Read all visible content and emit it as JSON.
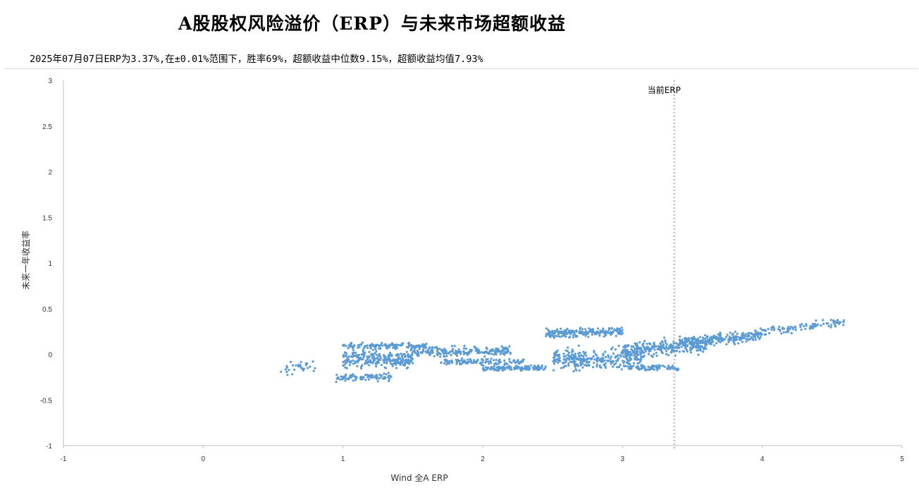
{
  "chart_data": {
    "type": "scatter",
    "title": "A股股权风险溢价（ERP）与未来市场超额收益",
    "subtitle": "2025年07月07日ERP为3.37%,在±0.01%范围下，胜率69%，超额收益中位数9.15%，超额收益均值7.93%",
    "xlabel": "Wind 全A ERP",
    "ylabel": "未来一年收益率",
    "xlim": [
      -1,
      5
    ],
    "ylim": [
      -1,
      3
    ],
    "x_ticks": [
      "-1",
      "0",
      "1",
      "2",
      "3",
      "4",
      "5"
    ],
    "y_ticks": [
      "-1",
      "-0.5",
      "0",
      "0.5",
      "1",
      "1.5",
      "2",
      "2.5",
      "3"
    ],
    "grid": false,
    "legend": "none",
    "point_color": "#5b9bd5",
    "reference_line": {
      "label": "当前ERP",
      "x": 3.37,
      "color": "#bfbfbf"
    },
    "clusters": [
      {
        "x_range": [
          0.52,
          0.85
        ],
        "y_center": -0.15,
        "y_spread": 0.07,
        "slope": 0.25,
        "count": 30
      },
      {
        "x_range": [
          1.0,
          1.5
        ],
        "y_center": -0.05,
        "y_spread": 0.09,
        "slope": 0.0,
        "count": 260
      },
      {
        "x_range": [
          0.95,
          1.35
        ],
        "y_center": -0.25,
        "y_spread": 0.04,
        "slope": 0.05,
        "count": 90
      },
      {
        "x_range": [
          1.0,
          1.6
        ],
        "y_center": 0.09,
        "y_spread": 0.03,
        "slope": 0.0,
        "count": 140
      },
      {
        "x_range": [
          1.5,
          2.2
        ],
        "y_center": 0.03,
        "y_spread": 0.05,
        "slope": 0.03,
        "count": 200
      },
      {
        "x_range": [
          1.7,
          2.3
        ],
        "y_center": -0.08,
        "y_spread": 0.03,
        "slope": 0.0,
        "count": 110
      },
      {
        "x_range": [
          2.0,
          2.45
        ],
        "y_center": -0.15,
        "y_spread": 0.03,
        "slope": 0.02,
        "count": 120
      },
      {
        "x_range": [
          2.45,
          3.0
        ],
        "y_center": 0.24,
        "y_spread": 0.05,
        "slope": 0.05,
        "count": 200
      },
      {
        "x_range": [
          2.5,
          3.15
        ],
        "y_center": -0.05,
        "y_spread": 0.1,
        "slope": 0.02,
        "count": 300
      },
      {
        "x_range": [
          3.0,
          3.6
        ],
        "y_center": 0.07,
        "y_spread": 0.08,
        "slope": 0.1,
        "count": 260
      },
      {
        "x_range": [
          3.05,
          3.4
        ],
        "y_center": -0.15,
        "y_spread": 0.03,
        "slope": 0.0,
        "count": 80
      },
      {
        "x_range": [
          3.4,
          4.0
        ],
        "y_center": 0.17,
        "y_spread": 0.06,
        "slope": 0.15,
        "count": 240
      },
      {
        "x_range": [
          4.0,
          4.6
        ],
        "y_center": 0.3,
        "y_spread": 0.04,
        "slope": 0.18,
        "count": 90
      }
    ]
  }
}
